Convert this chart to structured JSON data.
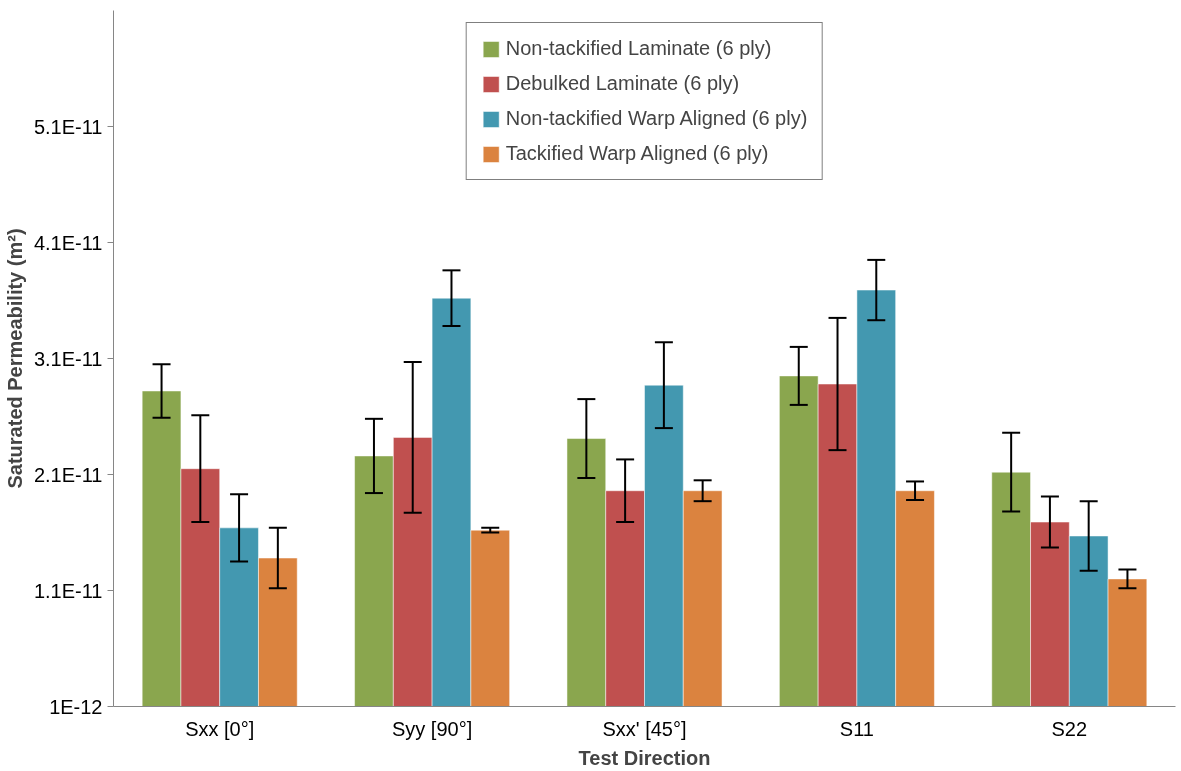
{
  "chart_data": {
    "type": "bar",
    "xlabel": "Test Direction",
    "ylabel": "Saturated Permeability (m²)",
    "categories": [
      "Sxx [0°]",
      "Syy [90°]",
      "Sxx' [45°]",
      "S11",
      "S22"
    ],
    "series": [
      {
        "name": "Non-tackified Laminate (6 ply)",
        "color": "#8aa64e",
        "values": [
          2.82e-11,
          2.26e-11,
          2.41e-11,
          2.95e-11,
          2.12e-11
        ],
        "errors": [
          2.3e-12,
          3.2e-12,
          3.4e-12,
          2.5e-12,
          3.4e-12
        ]
      },
      {
        "name": "Debulked Laminate (6 ply)",
        "color": "#c0504f",
        "values": [
          2.15e-11,
          2.42e-11,
          1.96e-11,
          2.88e-11,
          1.69e-11
        ],
        "errors": [
          4.6e-12,
          6.5e-12,
          2.7e-12,
          5.7e-12,
          2.2e-12
        ]
      },
      {
        "name": "Non-tackified Warp Aligned (6 ply)",
        "color": "#4398b0",
        "values": [
          1.64e-11,
          3.62e-11,
          2.87e-11,
          3.69e-11,
          1.57e-11
        ],
        "errors": [
          2.9e-12,
          2.4e-12,
          3.7e-12,
          2.6e-12,
          3e-12
        ]
      },
      {
        "name": "Tackified Warp Aligned (6 ply)",
        "color": "#db833f",
        "values": [
          1.38e-11,
          1.62e-11,
          1.96e-11,
          1.96e-11,
          1.2e-11
        ],
        "errors": [
          2.6e-12,
          2e-13,
          9e-13,
          8e-13,
          8e-13
        ]
      }
    ],
    "ylim": [
      1e-12,
      6.1e-11
    ],
    "yticks": [
      {
        "value": 1e-12,
        "label": "1E-12"
      },
      {
        "value": 1.1e-11,
        "label": "1.1E-11"
      },
      {
        "value": 2.1e-11,
        "label": "2.1E-11"
      },
      {
        "value": 3.1e-11,
        "label": "3.1E-11"
      },
      {
        "value": 4.1e-11,
        "label": "4.1E-11"
      },
      {
        "value": 5.1e-11,
        "label": "5.1E-11"
      }
    ],
    "grid": false,
    "legend": "top"
  }
}
